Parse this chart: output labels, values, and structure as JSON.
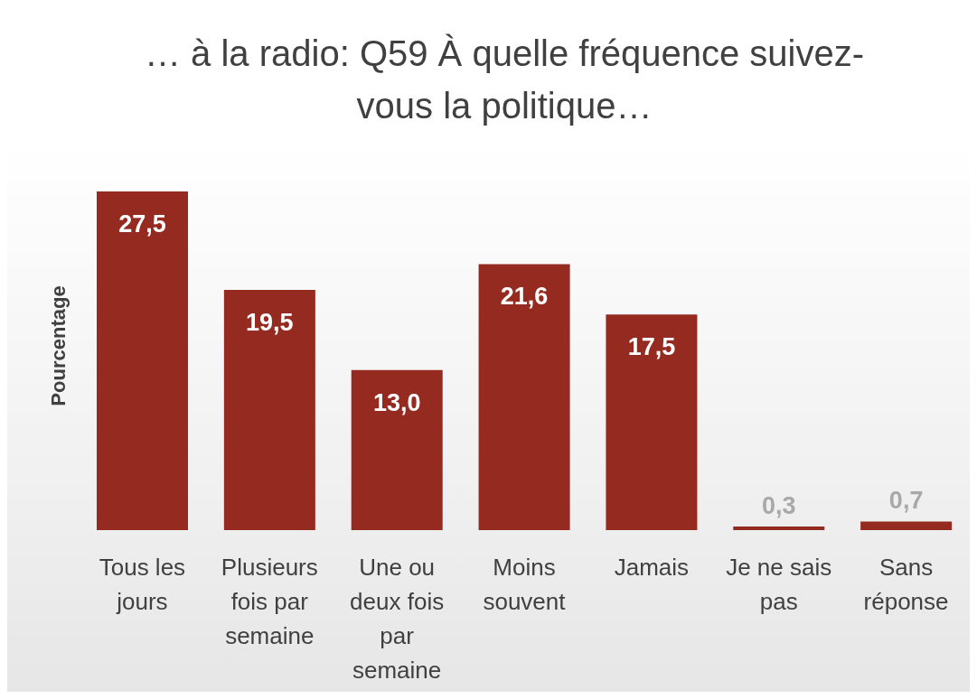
{
  "chart_data": {
    "type": "bar",
    "title": "… à la radio: Q59 À quelle fréquence suivez-vous la politique…",
    "ylabel": "Pourcentage",
    "categories": [
      "Tous les jours",
      "Plusieurs fois par semaine",
      "Une ou deux fois par semaine",
      "Moins souvent",
      "Jamais",
      "Je ne sais pas",
      "Sans réponse"
    ],
    "values": [
      27.5,
      19.5,
      13.0,
      21.6,
      17.5,
      0.3,
      0.7
    ],
    "value_labels": [
      "27,5",
      "19,5",
      "13,0",
      "21,6",
      "17,5",
      "0,3",
      "0,7"
    ],
    "color": "#952a20"
  }
}
